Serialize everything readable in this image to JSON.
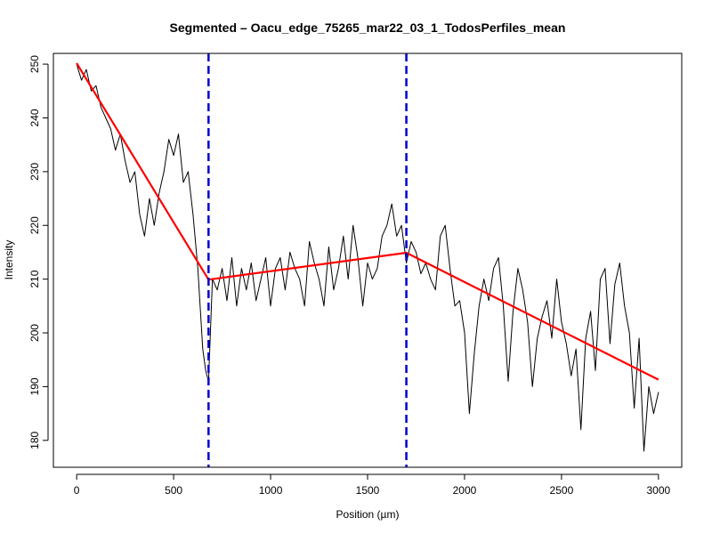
{
  "chart_data": {
    "type": "line",
    "title": "Segmented – Oacu_edge_75265_mar22_03_1_TodosPerfiles_mean",
    "xlabel": "Position (µm)",
    "ylabel": "Intensity",
    "xlim": [
      -120,
      3120
    ],
    "ylim": [
      175,
      252
    ],
    "x_ticks": [
      0,
      500,
      1000,
      1500,
      2000,
      2500,
      3000
    ],
    "y_ticks": [
      180,
      190,
      200,
      210,
      220,
      230,
      240,
      250
    ],
    "grid": false,
    "legend": "none",
    "series": [
      {
        "role": "raw-profile",
        "color": "#000000",
        "x": [
          0,
          25,
          50,
          75,
          100,
          125,
          150,
          175,
          200,
          225,
          250,
          275,
          300,
          325,
          350,
          375,
          400,
          425,
          450,
          475,
          500,
          525,
          550,
          575,
          600,
          625,
          650,
          665,
          680,
          700,
          725,
          750,
          775,
          800,
          825,
          850,
          875,
          900,
          925,
          950,
          975,
          1000,
          1025,
          1050,
          1075,
          1100,
          1125,
          1150,
          1175,
          1200,
          1225,
          1250,
          1275,
          1300,
          1325,
          1350,
          1375,
          1400,
          1425,
          1450,
          1475,
          1500,
          1525,
          1550,
          1575,
          1600,
          1625,
          1650,
          1675,
          1700,
          1725,
          1750,
          1775,
          1800,
          1825,
          1850,
          1875,
          1900,
          1925,
          1950,
          1975,
          2000,
          2025,
          2050,
          2075,
          2100,
          2125,
          2150,
          2175,
          2200,
          2225,
          2250,
          2275,
          2300,
          2325,
          2350,
          2375,
          2400,
          2425,
          2450,
          2475,
          2500,
          2525,
          2550,
          2575,
          2600,
          2625,
          2650,
          2675,
          2700,
          2725,
          2750,
          2775,
          2800,
          2825,
          2850,
          2875,
          2900,
          2925,
          2950,
          2975,
          3000
        ],
        "y": [
          250,
          247,
          249,
          245,
          246,
          242,
          240,
          238,
          234,
          237,
          232,
          228,
          230,
          222,
          218,
          225,
          220,
          226,
          230,
          236,
          233,
          237,
          228,
          230,
          222,
          212,
          197,
          193,
          191,
          210,
          208,
          212,
          206,
          214,
          205,
          212,
          208,
          213,
          206,
          210,
          214,
          205,
          212,
          214,
          208,
          215,
          212,
          210,
          205,
          217,
          213,
          210,
          205,
          216,
          208,
          212,
          218,
          210,
          220,
          214,
          205,
          213,
          210,
          212,
          218,
          220,
          224,
          218,
          220,
          213,
          217,
          215,
          211,
          213,
          210,
          208,
          218,
          220,
          212,
          205,
          206,
          200,
          185,
          196,
          205,
          210,
          206,
          212,
          214,
          205,
          191,
          204,
          212,
          208,
          202,
          190,
          199,
          203,
          206,
          199,
          210,
          202,
          198,
          192,
          197,
          182,
          199,
          204,
          193,
          210,
          212,
          198,
          209,
          213,
          205,
          200,
          186,
          199,
          178,
          190,
          185,
          189
        ]
      },
      {
        "role": "segmented-fit",
        "color": "#ff0000",
        "x": [
          0,
          680,
          1700,
          3000
        ],
        "y": [
          250.2,
          209.9,
          214.9,
          191.3
        ]
      }
    ],
    "breakpoints": {
      "color": "#0000cc",
      "x": [
        680,
        1700
      ]
    }
  }
}
